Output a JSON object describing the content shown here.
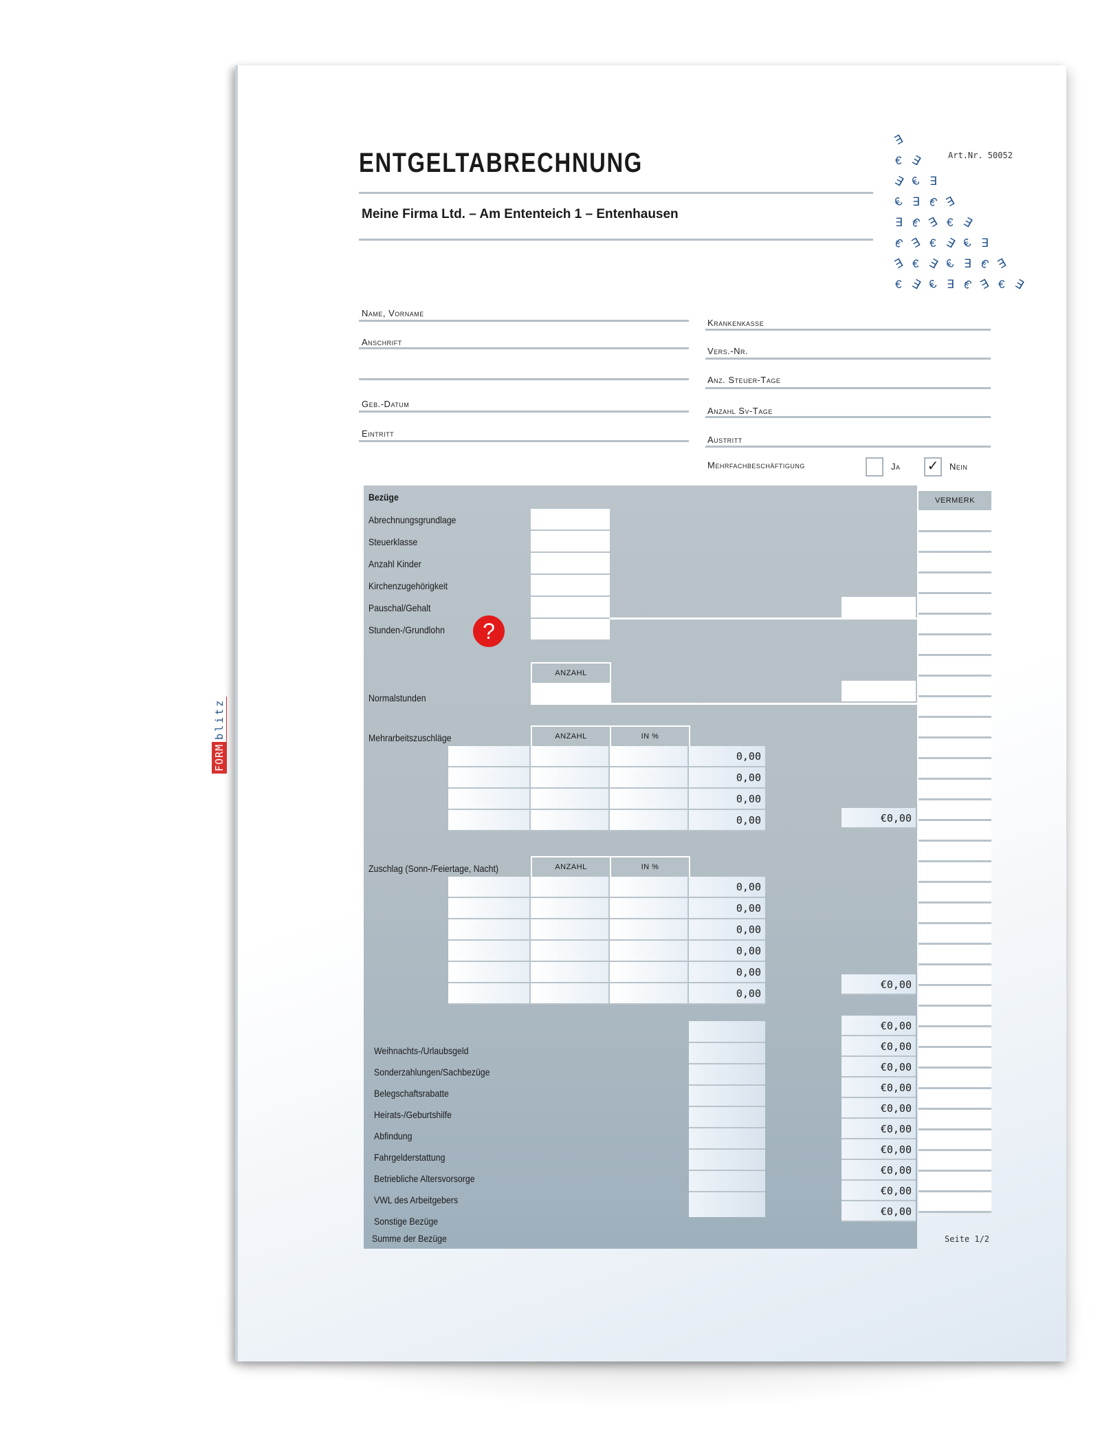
{
  "header": {
    "title": "ENTGELTABRECHNUNG",
    "company": "Meine Firma Ltd. – Am Ententeich 1 – Entenhausen",
    "art_nr": "Art.Nr. 50052"
  },
  "logo": {
    "form": "FORM",
    "blitz": "blitz",
    "colors": {
      "red": "#d6322f",
      "blue": "#1d4e86"
    }
  },
  "left_fields": [
    {
      "label": "Name, Vorname"
    },
    {
      "label": "Anschrift"
    },
    {
      "label": ""
    },
    {
      "label": "Geb.-Datum"
    },
    {
      "label": "Eintritt"
    }
  ],
  "right_fields": [
    {
      "label": "Krankenkasse"
    },
    {
      "label": "Vers.-Nr."
    },
    {
      "label": "Anz. Steuer-Tage"
    },
    {
      "label": "Anzahl Sv-Tage"
    },
    {
      "label": "Austritt"
    }
  ],
  "mehrfach": {
    "label": "Mehrfachbeschäftigung",
    "ja": "Ja",
    "nein": "Nein",
    "ja_checked": false,
    "nein_checked": true,
    "check_glyph": "✓"
  },
  "bezuege": {
    "heading": "Bezüge",
    "vermerk": "VERMERK",
    "basic_rows": [
      "Abrechnungsgrundlage",
      "Steuerklasse",
      "Anzahl Kinder",
      "Kirchenzugehörigkeit",
      "Pauschal/Gehalt",
      "Stunden-/Grundlohn"
    ],
    "help_icon": "?",
    "normalstunden": {
      "label": "Normalstunden",
      "col": "ANZAHL"
    },
    "mehrarbeit": {
      "label": "Mehrarbeitszuschläge",
      "cols": [
        "ANZAHL",
        "IN %"
      ],
      "values": [
        "0,00",
        "0,00",
        "0,00",
        "0,00"
      ],
      "total": "€0,00"
    },
    "zuschlag": {
      "label": "Zuschlag (Sonn-/Feiertage, Nacht)",
      "cols": [
        "ANZAHL",
        "IN %"
      ],
      "values": [
        "0,00",
        "0,00",
        "0,00",
        "0,00",
        "0,00",
        "0,00"
      ],
      "total": "€0,00"
    },
    "extra_rows": [
      {
        "label": "Weihnachts-/Urlaubsgeld",
        "value": "€0,00"
      },
      {
        "label": "Sonderzahlungen/Sachbezüge",
        "value": "€0,00"
      },
      {
        "label": "Belegschaftsrabatte",
        "value": "€0,00"
      },
      {
        "label": "Heirats-/Geburtshilfe",
        "value": "€0,00"
      },
      {
        "label": "Abfindung",
        "value": "€0,00"
      },
      {
        "label": "Fahrgelderstattung",
        "value": "€0,00"
      },
      {
        "label": "Betriebliche Altersvorsorge",
        "value": "€0,00"
      },
      {
        "label": "VWL des Arbeitgebers",
        "value": "€0,00"
      },
      {
        "label": "Sonstige Bezüge",
        "value": "€0,00"
      }
    ],
    "first_extra_value": "€0,00",
    "summe": "Summe der Bezüge"
  },
  "footer": {
    "page": "Seite 1/2"
  },
  "colors": {
    "table_grey": "#b5c0c7",
    "help_red": "#e31a1a",
    "euro_blue": "#1e4f8a"
  }
}
